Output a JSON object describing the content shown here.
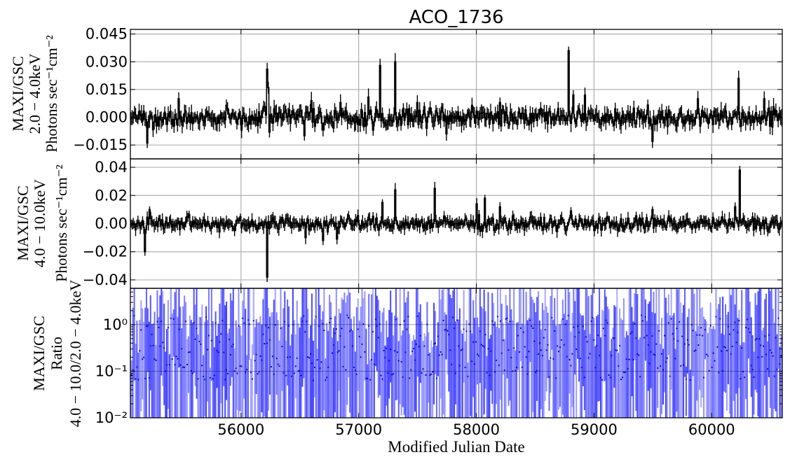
{
  "chart_data": {
    "title": "ACO_1736",
    "xlabel": "Modified Julian Date",
    "xlim": [
      55060,
      60600
    ],
    "xticks": [
      56000,
      57000,
      58000,
      59000,
      60000
    ],
    "grid": true,
    "panels": [
      {
        "type": "line",
        "ylabel": [
          "MAXI/GSC",
          "2.0 − 4.0keV",
          "Photons sec⁻¹cm⁻²"
        ],
        "ylim": [
          -0.0225,
          0.0475
        ],
        "yticks": [
          -0.015,
          0.0,
          0.015,
          0.03,
          0.045
        ],
        "ytick_labels": [
          "−0.015",
          "0.000",
          "0.015",
          "0.030",
          "0.045"
        ],
        "line_color": "#000000",
        "noise": 0.0035,
        "spikes": [
          {
            "x": 55200,
            "y": -0.014
          },
          {
            "x": 55470,
            "y": 0.01
          },
          {
            "x": 56000,
            "y": -0.007
          },
          {
            "x": 56220,
            "y": 0.026
          },
          {
            "x": 56230,
            "y": 0.016
          },
          {
            "x": 56240,
            "y": -0.008
          },
          {
            "x": 56540,
            "y": -0.01
          },
          {
            "x": 56600,
            "y": 0.009
          },
          {
            "x": 56700,
            "y": -0.007
          },
          {
            "x": 56850,
            "y": 0.008
          },
          {
            "x": 57080,
            "y": 0.011
          },
          {
            "x": 57120,
            "y": -0.007
          },
          {
            "x": 57180,
            "y": 0.028
          },
          {
            "x": 57310,
            "y": 0.03
          },
          {
            "x": 57500,
            "y": 0.008
          },
          {
            "x": 57750,
            "y": -0.009
          },
          {
            "x": 58200,
            "y": 0.008
          },
          {
            "x": 58780,
            "y": 0.036
          },
          {
            "x": 58820,
            "y": 0.012
          },
          {
            "x": 58920,
            "y": 0.012
          },
          {
            "x": 59500,
            "y": -0.013
          },
          {
            "x": 59880,
            "y": 0.01
          },
          {
            "x": 60230,
            "y": 0.021
          },
          {
            "x": 60450,
            "y": 0.01
          }
        ]
      },
      {
        "type": "line",
        "ylabel": [
          "MAXI/GSC",
          "4.0 − 10.0keV",
          "Photons sec⁻¹cm⁻²"
        ],
        "ylim": [
          -0.046,
          0.046
        ],
        "yticks": [
          -0.04,
          -0.02,
          0.0,
          0.02,
          0.04
        ],
        "ytick_labels": [
          "−0.04",
          "−0.02",
          "0.00",
          "0.02",
          "0.04"
        ],
        "line_color": "#000000",
        "noise": 0.0035,
        "spikes": [
          {
            "x": 55180,
            "y": -0.02
          },
          {
            "x": 55220,
            "y": 0.01
          },
          {
            "x": 56220,
            "y": 0.016
          },
          {
            "x": 56225,
            "y": -0.038
          },
          {
            "x": 56550,
            "y": -0.01
          },
          {
            "x": 56700,
            "y": -0.012
          },
          {
            "x": 56820,
            "y": -0.011
          },
          {
            "x": 57200,
            "y": 0.015
          },
          {
            "x": 57310,
            "y": 0.024
          },
          {
            "x": 57650,
            "y": 0.025
          },
          {
            "x": 58000,
            "y": 0.014
          },
          {
            "x": 58070,
            "y": 0.018
          },
          {
            "x": 58200,
            "y": 0.012
          },
          {
            "x": 58800,
            "y": 0.009
          },
          {
            "x": 59500,
            "y": 0.01
          },
          {
            "x": 60200,
            "y": 0.012
          },
          {
            "x": 60240,
            "y": 0.038
          }
        ]
      },
      {
        "type": "scatter",
        "yscale": "log",
        "ylabel": [
          "MAXI/GSC",
          "Ratio",
          "4.0 − 10.0/2.0 − 4.0keV"
        ],
        "ylim": [
          0.01,
          6.0
        ],
        "yticks": [
          0.01,
          0.1,
          1.0
        ],
        "ytick_labels": [
          "10⁻²",
          "10⁻¹",
          "10⁰"
        ],
        "point_color": "#1f1fff",
        "hlines": [
          0.1,
          1.0
        ]
      }
    ]
  }
}
